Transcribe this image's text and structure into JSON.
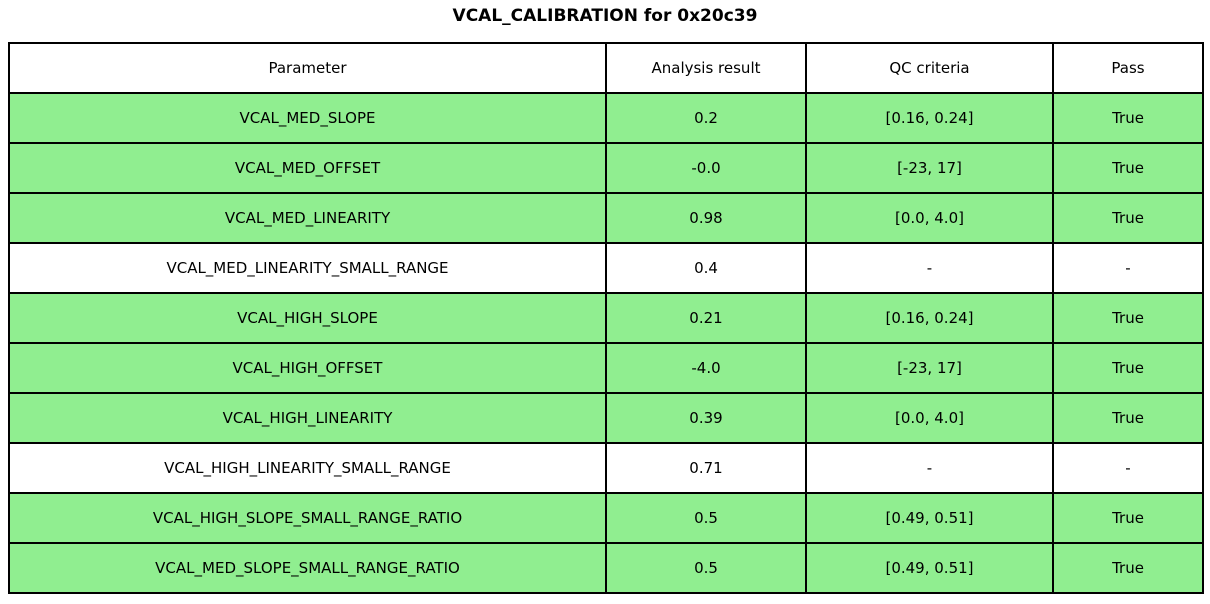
{
  "title": "VCAL_CALIBRATION for 0x20c39",
  "colors": {
    "pass_row_bg": "#90EE90",
    "neutral_row_bg": "#FFFFFF",
    "border": "#000000",
    "text": "#000000"
  },
  "chart_data": {
    "type": "table",
    "title": "VCAL_CALIBRATION for 0x20c39",
    "columns": [
      "Parameter",
      "Analysis result",
      "QC criteria",
      "Pass"
    ],
    "rows": [
      {
        "parameter": "VCAL_MED_SLOPE",
        "result": "0.2",
        "qc": "[0.16, 0.24]",
        "pass": "True",
        "highlight": true
      },
      {
        "parameter": "VCAL_MED_OFFSET",
        "result": "-0.0",
        "qc": "[-23, 17]",
        "pass": "True",
        "highlight": true
      },
      {
        "parameter": "VCAL_MED_LINEARITY",
        "result": "0.98",
        "qc": "[0.0, 4.0]",
        "pass": "True",
        "highlight": true
      },
      {
        "parameter": "VCAL_MED_LINEARITY_SMALL_RANGE",
        "result": "0.4",
        "qc": "-",
        "pass": "-",
        "highlight": false
      },
      {
        "parameter": "VCAL_HIGH_SLOPE",
        "result": "0.21",
        "qc": "[0.16, 0.24]",
        "pass": "True",
        "highlight": true
      },
      {
        "parameter": "VCAL_HIGH_OFFSET",
        "result": "-4.0",
        "qc": "[-23, 17]",
        "pass": "True",
        "highlight": true
      },
      {
        "parameter": "VCAL_HIGH_LINEARITY",
        "result": "0.39",
        "qc": "[0.0, 4.0]",
        "pass": "True",
        "highlight": true
      },
      {
        "parameter": "VCAL_HIGH_LINEARITY_SMALL_RANGE",
        "result": "0.71",
        "qc": "-",
        "pass": "-",
        "highlight": false
      },
      {
        "parameter": "VCAL_HIGH_SLOPE_SMALL_RANGE_RATIO",
        "result": "0.5",
        "qc": "[0.49, 0.51]",
        "pass": "True",
        "highlight": true
      },
      {
        "parameter": "VCAL_MED_SLOPE_SMALL_RANGE_RATIO",
        "result": "0.5",
        "qc": "[0.49, 0.51]",
        "pass": "True",
        "highlight": true
      }
    ]
  }
}
